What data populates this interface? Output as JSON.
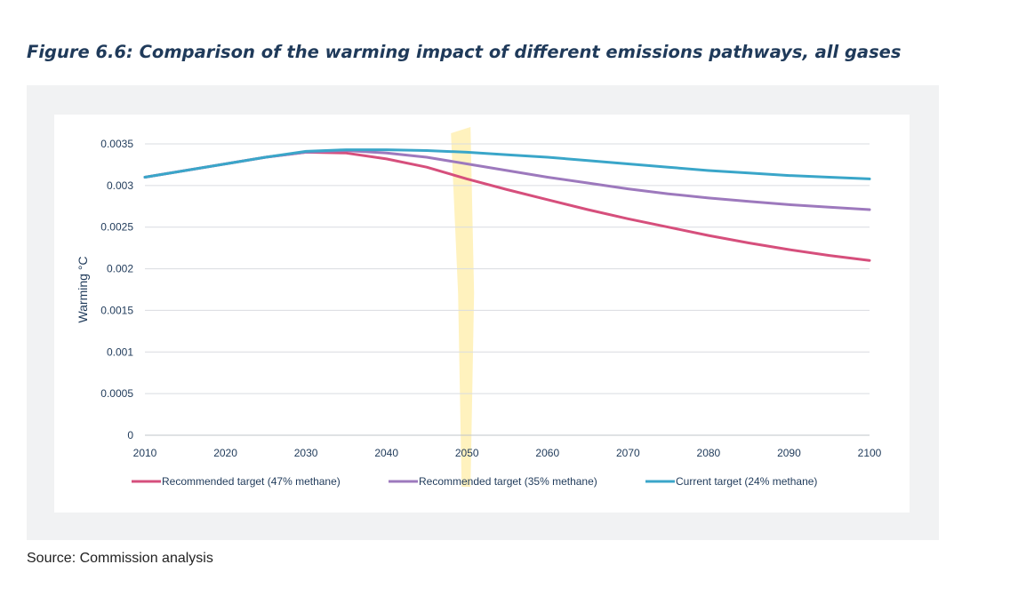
{
  "figure": {
    "title": "Figure 6.6: Comparison of the warming impact of different emissions pathways, all gases",
    "source": "Source: Commission analysis"
  },
  "chart_data": {
    "type": "line",
    "title": "Figure 6.6: Comparison of the warming impact of different emissions pathways, all gases",
    "xlabel": "",
    "ylabel": "Warming °C",
    "xlim": [
      2010,
      2100
    ],
    "ylim": [
      0,
      0.0035
    ],
    "xticks": [
      2010,
      2020,
      2030,
      2040,
      2050,
      2060,
      2070,
      2080,
      2090,
      2100
    ],
    "xtick_labels": [
      "2010",
      "2020",
      "2030",
      "2040",
      "2050",
      "2060",
      "2070",
      "2080",
      "2090",
      "2100"
    ],
    "yticks": [
      0,
      0.0005,
      0.001,
      0.0015,
      0.002,
      0.0025,
      0.003,
      0.0035
    ],
    "ytick_labels": [
      "0",
      "0.0005",
      "0.001",
      "0.0015",
      "0.002",
      "0.0025",
      "0.003",
      "0.0035"
    ],
    "grid": true,
    "legend_position": "bottom",
    "x": [
      2010,
      2015,
      2020,
      2025,
      2030,
      2035,
      2040,
      2045,
      2050,
      2055,
      2060,
      2065,
      2070,
      2075,
      2080,
      2085,
      2090,
      2095,
      2100
    ],
    "series": [
      {
        "name": "Recommended target (47% methane)",
        "color": "#d64f7c",
        "values": [
          0.0031,
          0.00318,
          0.00326,
          0.00334,
          0.0034,
          0.00339,
          0.00332,
          0.00322,
          0.00308,
          0.00295,
          0.00283,
          0.00271,
          0.0026,
          0.0025,
          0.0024,
          0.00231,
          0.00223,
          0.00216,
          0.0021
        ]
      },
      {
        "name": "Recommended target (35% methane)",
        "color": "#9d79bd",
        "values": [
          0.0031,
          0.00318,
          0.00326,
          0.00334,
          0.0034,
          0.00342,
          0.00339,
          0.00334,
          0.00326,
          0.00318,
          0.0031,
          0.00303,
          0.00296,
          0.0029,
          0.00285,
          0.00281,
          0.00277,
          0.00274,
          0.00271
        ]
      },
      {
        "name": "Current target (24% methane)",
        "color": "#3aa6c9",
        "values": [
          0.0031,
          0.00318,
          0.00326,
          0.00334,
          0.00341,
          0.00343,
          0.00343,
          0.00342,
          0.0034,
          0.00337,
          0.00334,
          0.0033,
          0.00326,
          0.00322,
          0.00318,
          0.00315,
          0.00312,
          0.0031,
          0.00308
        ]
      }
    ],
    "highlight": {
      "x": 2050,
      "color": "#fff0b3"
    }
  }
}
